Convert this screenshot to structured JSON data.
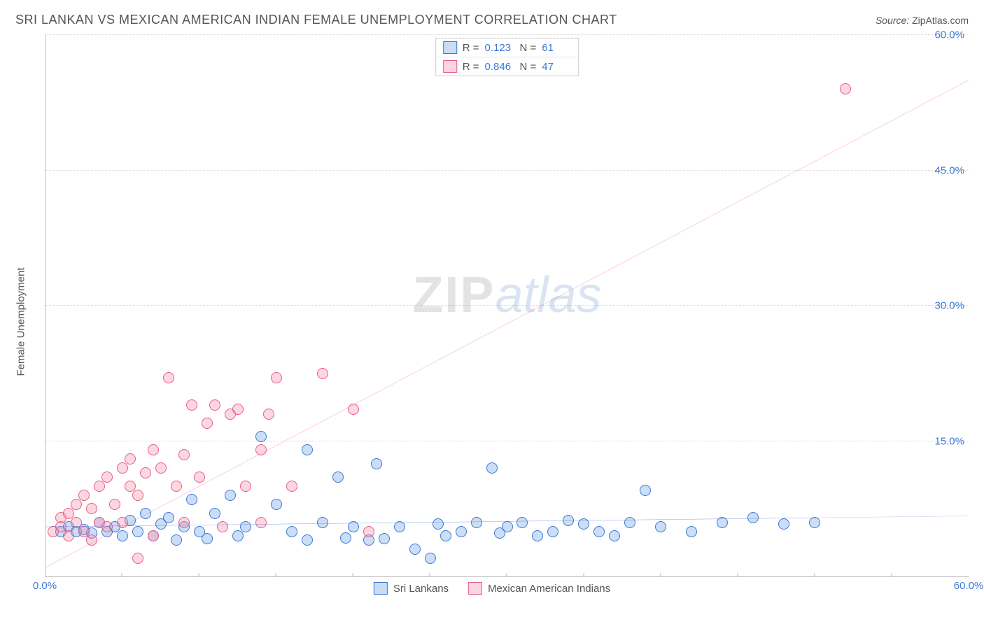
{
  "title": "SRI LANKAN VS MEXICAN AMERICAN INDIAN FEMALE UNEMPLOYMENT CORRELATION CHART",
  "source_label": "Source:",
  "source_value": "ZipAtlas.com",
  "y_axis_label": "Female Unemployment",
  "watermark_zip": "ZIP",
  "watermark_atlas": "atlas",
  "chart": {
    "type": "scatter",
    "xlim": [
      0,
      60
    ],
    "ylim": [
      0,
      60
    ],
    "background_color": "#ffffff",
    "grid_color": "#dddddd",
    "axis_color": "#bbbbbb",
    "tick_color": "#3b78d8",
    "tick_fontsize": 15,
    "point_radius": 8,
    "y_ticks": [
      {
        "value": 15,
        "label": "15.0%"
      },
      {
        "value": 30,
        "label": "30.0%"
      },
      {
        "value": 45,
        "label": "45.0%"
      },
      {
        "value": 60,
        "label": "60.0%"
      }
    ],
    "x_ticks_minor_step": 5,
    "x_tick_labels": [
      {
        "value": 0,
        "label": "0.0%"
      },
      {
        "value": 60,
        "label": "60.0%"
      }
    ]
  },
  "legend_top": {
    "rows": [
      {
        "swatch_fill": "rgba(80,140,220,0.3)",
        "swatch_border": "#3b78d8",
        "r_label": "R =",
        "r_value": "0.123",
        "n_label": "N =",
        "n_value": "61"
      },
      {
        "swatch_fill": "rgba(240,120,150,0.3)",
        "swatch_border": "#e85c8a",
        "r_label": "R =",
        "r_value": "0.846",
        "n_label": "N =",
        "n_value": "47"
      }
    ]
  },
  "legend_bottom": {
    "items": [
      {
        "swatch_fill": "rgba(80,140,220,0.3)",
        "swatch_border": "#3b78d8",
        "label": "Sri Lankans"
      },
      {
        "swatch_fill": "rgba(240,120,150,0.3)",
        "swatch_border": "#e85c8a",
        "label": "Mexican American Indians"
      }
    ]
  },
  "series": [
    {
      "name": "sri_lankans",
      "fill": "rgba(110,160,225,0.35)",
      "stroke": "#3b78d8",
      "trend": {
        "x1": 0,
        "y1": 5.5,
        "x2": 50,
        "y2": 6.5,
        "extrap_x2": 60,
        "extrap_y2": 6.7,
        "color": "#2f6ad0",
        "width": 2.5
      },
      "points": [
        [
          1,
          5
        ],
        [
          1.5,
          5.5
        ],
        [
          2,
          5
        ],
        [
          2.5,
          5.2
        ],
        [
          3,
          4.8
        ],
        [
          3.5,
          6
        ],
        [
          4,
          5
        ],
        [
          4.5,
          5.5
        ],
        [
          5,
          4.5
        ],
        [
          5.5,
          6.2
        ],
        [
          6,
          5
        ],
        [
          6.5,
          7
        ],
        [
          7,
          4.5
        ],
        [
          7.5,
          5.8
        ],
        [
          8,
          6.5
        ],
        [
          8.5,
          4
        ],
        [
          9,
          5.5
        ],
        [
          9.5,
          8.5
        ],
        [
          10,
          5
        ],
        [
          10.5,
          4.2
        ],
        [
          11,
          7
        ],
        [
          12,
          9
        ],
        [
          12.5,
          4.5
        ],
        [
          13,
          5.5
        ],
        [
          14,
          15.5
        ],
        [
          15,
          8
        ],
        [
          16,
          5
        ],
        [
          17,
          4
        ],
        [
          17,
          14
        ],
        [
          18,
          6
        ],
        [
          19,
          11
        ],
        [
          19.5,
          4.3
        ],
        [
          20,
          5.5
        ],
        [
          21,
          4
        ],
        [
          21.5,
          12.5
        ],
        [
          22,
          4.2
        ],
        [
          23,
          5.5
        ],
        [
          24,
          3
        ],
        [
          25,
          2
        ],
        [
          25.5,
          5.8
        ],
        [
          26,
          4.5
        ],
        [
          27,
          5
        ],
        [
          28,
          6
        ],
        [
          29,
          12
        ],
        [
          29.5,
          4.8
        ],
        [
          30,
          5.5
        ],
        [
          31,
          6
        ],
        [
          32,
          4.5
        ],
        [
          33,
          5
        ],
        [
          34,
          6.2
        ],
        [
          35,
          5.8
        ],
        [
          36,
          5
        ],
        [
          37,
          4.5
        ],
        [
          38,
          6
        ],
        [
          39,
          9.5
        ],
        [
          40,
          5.5
        ],
        [
          42,
          5
        ],
        [
          44,
          6
        ],
        [
          46,
          6.5
        ],
        [
          48,
          5.8
        ],
        [
          50,
          6
        ]
      ]
    },
    {
      "name": "mexican_american_indians",
      "fill": "rgba(245,140,165,0.35)",
      "stroke": "#e85c8a",
      "trend": {
        "x1": 0,
        "y1": 1,
        "x2": 60,
        "y2": 55,
        "color": "#e85c8a",
        "width": 2.5
      },
      "points": [
        [
          0.5,
          5
        ],
        [
          1,
          5.5
        ],
        [
          1,
          6.5
        ],
        [
          1.5,
          4.5
        ],
        [
          1.5,
          7
        ],
        [
          2,
          6
        ],
        [
          2,
          8
        ],
        [
          2.5,
          5
        ],
        [
          2.5,
          9
        ],
        [
          3,
          4
        ],
        [
          3,
          7.5
        ],
        [
          3.5,
          6
        ],
        [
          3.5,
          10
        ],
        [
          4,
          5.5
        ],
        [
          4,
          11
        ],
        [
          4.5,
          8
        ],
        [
          5,
          6
        ],
        [
          5,
          12
        ],
        [
          5.5,
          10
        ],
        [
          5.5,
          13
        ],
        [
          6,
          2
        ],
        [
          6,
          9
        ],
        [
          6.5,
          11.5
        ],
        [
          7,
          4.5
        ],
        [
          7,
          14
        ],
        [
          7.5,
          12
        ],
        [
          8,
          22
        ],
        [
          8.5,
          10
        ],
        [
          9,
          6
        ],
        [
          9,
          13.5
        ],
        [
          9.5,
          19
        ],
        [
          10,
          11
        ],
        [
          10.5,
          17
        ],
        [
          11,
          19
        ],
        [
          11.5,
          5.5
        ],
        [
          12,
          18
        ],
        [
          12.5,
          18.5
        ],
        [
          13,
          10
        ],
        [
          14,
          6
        ],
        [
          14,
          14
        ],
        [
          14.5,
          18
        ],
        [
          15,
          22
        ],
        [
          16,
          10
        ],
        [
          18,
          22.5
        ],
        [
          20,
          18.5
        ],
        [
          21,
          5
        ],
        [
          52,
          54
        ]
      ]
    }
  ]
}
